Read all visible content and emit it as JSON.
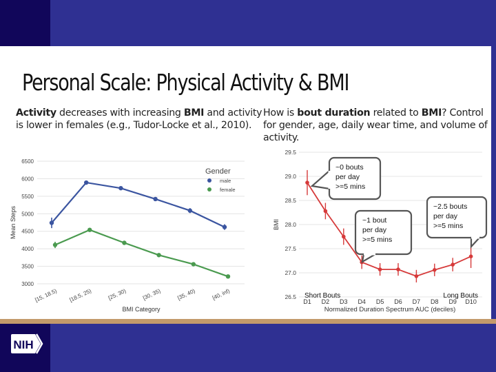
{
  "slide": {
    "title": "Personal Scale: Physical Activity & BMI",
    "left_text": {
      "bold1": "Activity",
      "mid1": " decreases with increasing ",
      "bold2": "BMI",
      "rest": " and activity is lower in females (e.g., Tudor-Locke et al., 2010)."
    },
    "right_text": {
      "pre1": "How is ",
      "bold1": "bout duration",
      "mid1": " related to ",
      "bold2": "BMI",
      "rest": "? Control for gender, age, daily wear time, and volume of activity."
    },
    "logo_text": "NIH"
  },
  "colors": {
    "header_dark": "#11065a",
    "header_blue": "#2f3092",
    "tan": "#c39a6b",
    "male": "#3b55a0",
    "female": "#4a9a4f",
    "bmi_line": "#d63a3a"
  },
  "chart_data": [
    {
      "type": "line",
      "title": "",
      "xlabel": "BMI Category",
      "ylabel": "Mean Steps",
      "categories": [
        "[15, 18.5)",
        "[18.5, 25)",
        "[25, 30)",
        "[30, 35)",
        "[35, 40)",
        "[40, inf)"
      ],
      "yticks": [
        3000,
        3500,
        4000,
        4500,
        5000,
        5500,
        6000,
        6500
      ],
      "ylim": [
        3000,
        6500
      ],
      "grid": true,
      "legend": {
        "title": "Gender",
        "position": "top-right",
        "entries": [
          "male",
          "female"
        ]
      },
      "series": [
        {
          "name": "male",
          "values": [
            4740,
            5890,
            5730,
            5420,
            5090,
            4620
          ],
          "err": [
            150,
            40,
            40,
            40,
            70,
            80
          ]
        },
        {
          "name": "female",
          "values": [
            4110,
            4540,
            4170,
            3820,
            3560,
            3210
          ],
          "err": [
            90,
            40,
            40,
            40,
            40,
            40
          ]
        }
      ]
    },
    {
      "type": "line",
      "title": "",
      "xlabel": "Normalized Duration Spectrum AUC (deciles)",
      "ylabel": "BMI",
      "categories": [
        "D1",
        "D2",
        "D3",
        "D4",
        "D5",
        "D6",
        "D7",
        "D8",
        "D9",
        "D10"
      ],
      "yticks": [
        "26.5",
        "27.0",
        "27.5",
        "28.0",
        "28.5",
        "29.0",
        "29.5"
      ],
      "ylim": [
        26.5,
        29.5
      ],
      "grid": true,
      "series": [
        {
          "name": "BMI",
          "values": [
            28.87,
            28.28,
            27.75,
            27.22,
            27.07,
            27.07,
            26.93,
            27.06,
            27.17,
            27.34
          ],
          "err": [
            0.26,
            0.17,
            0.17,
            0.14,
            0.13,
            0.13,
            0.13,
            0.13,
            0.14,
            0.24
          ]
        }
      ],
      "corner_labels": {
        "left": "Short Bouts",
        "right": "Long Bouts"
      },
      "annotations": [
        {
          "lines": [
            "~0 bouts",
            "per day",
            ">=5 mins"
          ],
          "decile": "D1"
        },
        {
          "lines": [
            "~1 bout",
            "per day",
            ">=5 mins"
          ],
          "decile": "D4"
        },
        {
          "lines": [
            "~2.5 bouts",
            "per day",
            ">=5 mins"
          ],
          "decile": "D10"
        }
      ]
    }
  ]
}
